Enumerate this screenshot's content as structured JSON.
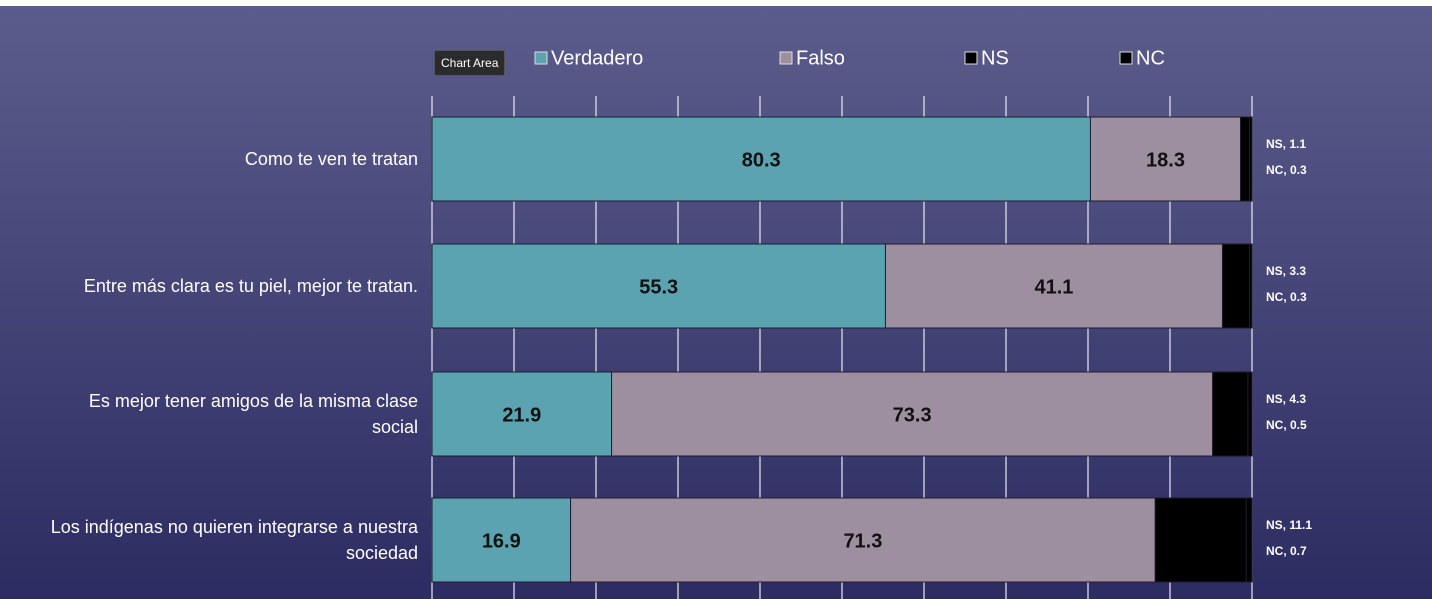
{
  "chart_data": {
    "type": "stacked-bar-horizontal",
    "tooltip": "Chart Area",
    "categories": [
      "Como te ven te tratan",
      "Entre más clara es tu piel, mejor te tratan.",
      "Es mejor tener amigos de la misma clase social",
      "Los indígenas no quieren integrarse a nuestra sociedad"
    ],
    "series": [
      {
        "name": "Verdadero",
        "color": "#5ba3b0",
        "values": [
          80.3,
          55.3,
          21.9,
          16.9
        ]
      },
      {
        "name": "Falso",
        "color": "#9e8fa0",
        "values": [
          18.3,
          41.1,
          73.3,
          71.3
        ]
      },
      {
        "name": "NS",
        "color": "#000000",
        "values": [
          1.1,
          3.3,
          4.3,
          11.1
        ],
        "value_labels": [
          "NS, 1.1",
          "NS, 3.3",
          "NS, 4.3",
          "NS, 11.1"
        ]
      },
      {
        "name": "NC",
        "color": "#000000",
        "values": [
          0.3,
          0.3,
          0.5,
          0.7
        ],
        "value_labels": [
          "NC, 0.3",
          "NC, 0.3",
          "NC, 0.5",
          "NC, 0.7"
        ]
      }
    ],
    "xlim": [
      0,
      100
    ],
    "xticks": [
      0,
      10,
      20,
      30,
      40,
      50,
      60,
      70,
      80,
      90,
      100
    ],
    "grid": true,
    "legend": "top"
  }
}
